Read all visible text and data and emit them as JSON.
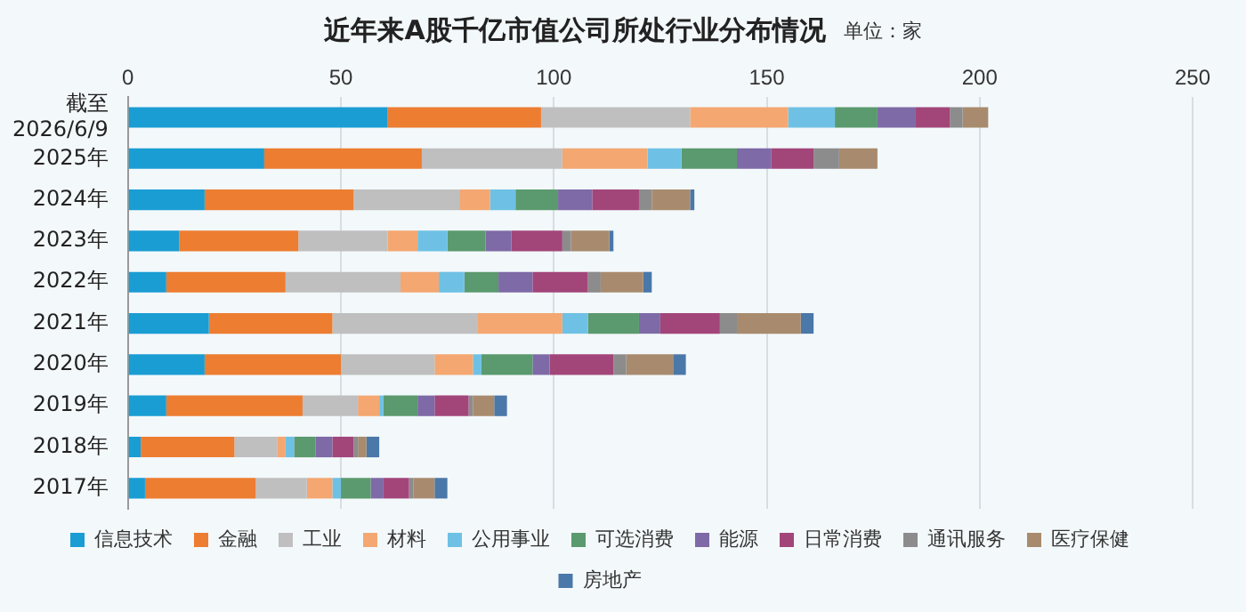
{
  "chart_data": {
    "type": "bar",
    "orientation": "horizontal",
    "stacked": true,
    "title": "近年来A股千亿市值公司所处行业分布情况",
    "subtitle": "单位：家",
    "categories": [
      "截至 2026/6/9",
      "2025年",
      "2024年",
      "2023年",
      "2022年",
      "2021年",
      "2020年",
      "2019年",
      "2018年",
      "2017年"
    ],
    "series": [
      {
        "name": "信息技术",
        "color": "#1a9dd3",
        "values": [
          61,
          32,
          18,
          12,
          9,
          19,
          18,
          9,
          3,
          4
        ]
      },
      {
        "name": "金融",
        "color": "#ed7d31",
        "values": [
          36,
          37,
          35,
          28,
          28,
          29,
          32,
          32,
          22,
          26
        ]
      },
      {
        "name": "工业",
        "color": "#bfbfbf",
        "values": [
          35,
          33,
          25,
          21,
          27,
          34,
          22,
          13,
          10,
          12
        ]
      },
      {
        "name": "材料",
        "color": "#f4a771",
        "values": [
          23,
          20,
          7,
          7,
          9,
          20,
          9,
          5,
          2,
          6
        ]
      },
      {
        "name": "公用事业",
        "color": "#6ec1e4",
        "values": [
          11,
          8,
          6,
          7,
          6,
          6,
          2,
          1,
          2,
          2
        ]
      },
      {
        "name": "可选消费",
        "color": "#5b9a6e",
        "values": [
          10,
          13,
          10,
          9,
          8,
          12,
          12,
          8,
          5,
          7
        ]
      },
      {
        "name": "能源",
        "color": "#7e6aa6",
        "values": [
          9,
          8,
          8,
          6,
          8,
          5,
          4,
          4,
          4,
          3
        ]
      },
      {
        "name": "日常消费",
        "color": "#a2467a",
        "values": [
          8,
          10,
          11,
          12,
          13,
          14,
          15,
          8,
          5,
          6
        ]
      },
      {
        "name": "通讯服务",
        "color": "#8c8c8c",
        "values": [
          3,
          6,
          3,
          2,
          3,
          4,
          3,
          1,
          1,
          1
        ]
      },
      {
        "name": "医疗保健",
        "color": "#a88b6e",
        "values": [
          6,
          9,
          9,
          9,
          10,
          15,
          11,
          5,
          2,
          5
        ]
      },
      {
        "name": "房地产",
        "color": "#4a78a8",
        "values": [
          0,
          0,
          1,
          1,
          2,
          3,
          3,
          3,
          3,
          3
        ]
      }
    ],
    "xlim": [
      0,
      250
    ],
    "xticks": [
      0,
      50,
      100,
      150,
      200,
      250
    ],
    "grid": "x",
    "legend": "bottom"
  }
}
